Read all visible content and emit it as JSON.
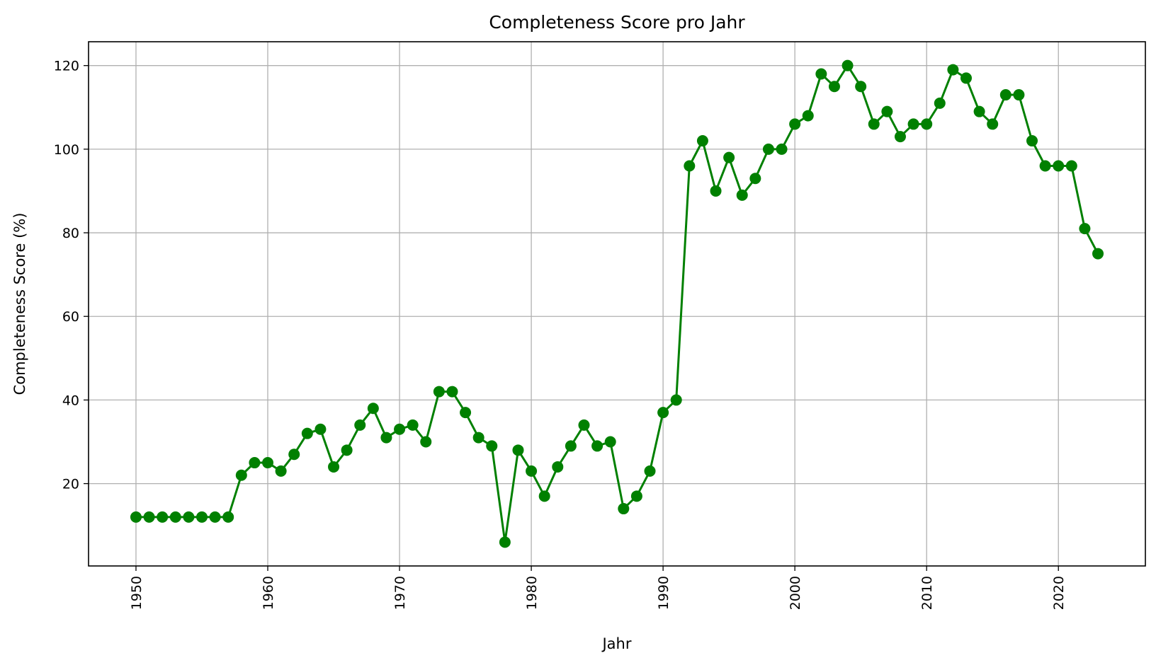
{
  "chart_data": {
    "type": "line",
    "title": "Completeness Score pro Jahr",
    "xlabel": "Jahr",
    "ylabel": "Completeness Score (%)",
    "grid": true,
    "xlim": [
      1946.4,
      2026.6
    ],
    "ylim": [
      0.3,
      125.7
    ],
    "x_ticks": [
      1950,
      1960,
      1970,
      1980,
      1990,
      2000,
      2010,
      2020
    ],
    "y_ticks": [
      20,
      40,
      60,
      80,
      100,
      120
    ],
    "x_tick_rotation": "vertical",
    "series": [
      {
        "color": "#008000",
        "marker": "circle",
        "x": [
          1950,
          1951,
          1952,
          1953,
          1954,
          1955,
          1956,
          1957,
          1958,
          1959,
          1960,
          1961,
          1962,
          1963,
          1964,
          1965,
          1966,
          1967,
          1968,
          1969,
          1970,
          1971,
          1972,
          1973,
          1974,
          1975,
          1976,
          1977,
          1978,
          1979,
          1980,
          1981,
          1982,
          1983,
          1984,
          1985,
          1986,
          1987,
          1988,
          1989,
          1990,
          1991,
          1992,
          1993,
          1994,
          1995,
          1996,
          1997,
          1998,
          1999,
          2000,
          2001,
          2002,
          2003,
          2004,
          2005,
          2006,
          2007,
          2008,
          2009,
          2010,
          2011,
          2012,
          2013,
          2014,
          2015,
          2016,
          2017,
          2018,
          2019,
          2020,
          2021,
          2022,
          2023
        ],
        "y": [
          12,
          12,
          12,
          12,
          12,
          12,
          12,
          12,
          22,
          25,
          25,
          23,
          27,
          32,
          33,
          24,
          28,
          34,
          38,
          31,
          33,
          34,
          30,
          42,
          42,
          37,
          31,
          29,
          6,
          28,
          23,
          17,
          24,
          29,
          34,
          29,
          30,
          14,
          17,
          23,
          37,
          40,
          96,
          102,
          90,
          98,
          89,
          93,
          100,
          100,
          106,
          108,
          118,
          115,
          120,
          115,
          106,
          109,
          103,
          106,
          106,
          111,
          119,
          117,
          109,
          106,
          113,
          113,
          102,
          96,
          96,
          96,
          81,
          75
        ]
      }
    ]
  }
}
